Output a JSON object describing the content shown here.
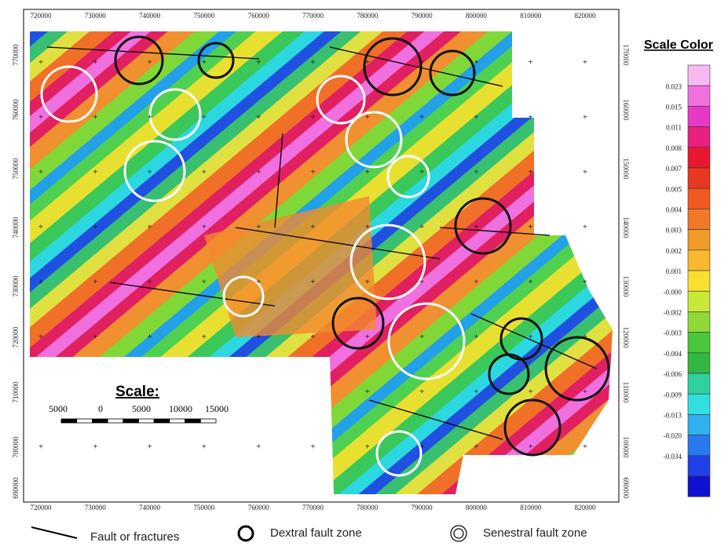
{
  "map": {
    "x_labels": [
      "720000",
      "730000",
      "740000",
      "750000",
      "760000",
      "770000",
      "780000",
      "790000",
      "800000",
      "810000",
      "820000"
    ],
    "y_labels_left": [
      "770000",
      "760000",
      "750000",
      "740000",
      "730000",
      "720000",
      "710000",
      "700000",
      "690000"
    ],
    "y_labels_right": [
      "170000",
      "160000",
      "150000",
      "140000",
      "130000",
      "120000",
      "110000",
      "100000",
      "690000"
    ],
    "scale": {
      "title": "Scale:",
      "labels": [
        "5000",
        "0",
        "5000",
        "10000",
        "15000"
      ]
    },
    "color_scale": {
      "title": "Scale Color",
      "labels": [
        "0.023",
        "0.015",
        "0.011",
        "0.008",
        "0.007",
        "0.005",
        "0.004",
        "0.003",
        "0.002",
        "0.001",
        "-0.000",
        "-0.002",
        "-0.003",
        "-0.004",
        "-0.006",
        "-0.009",
        "-0.013",
        "-0.020",
        "-0.034"
      ]
    },
    "legend": [
      "Fault or fractures",
      "Dextral fault zone",
      "Senestral fault zone"
    ]
  }
}
